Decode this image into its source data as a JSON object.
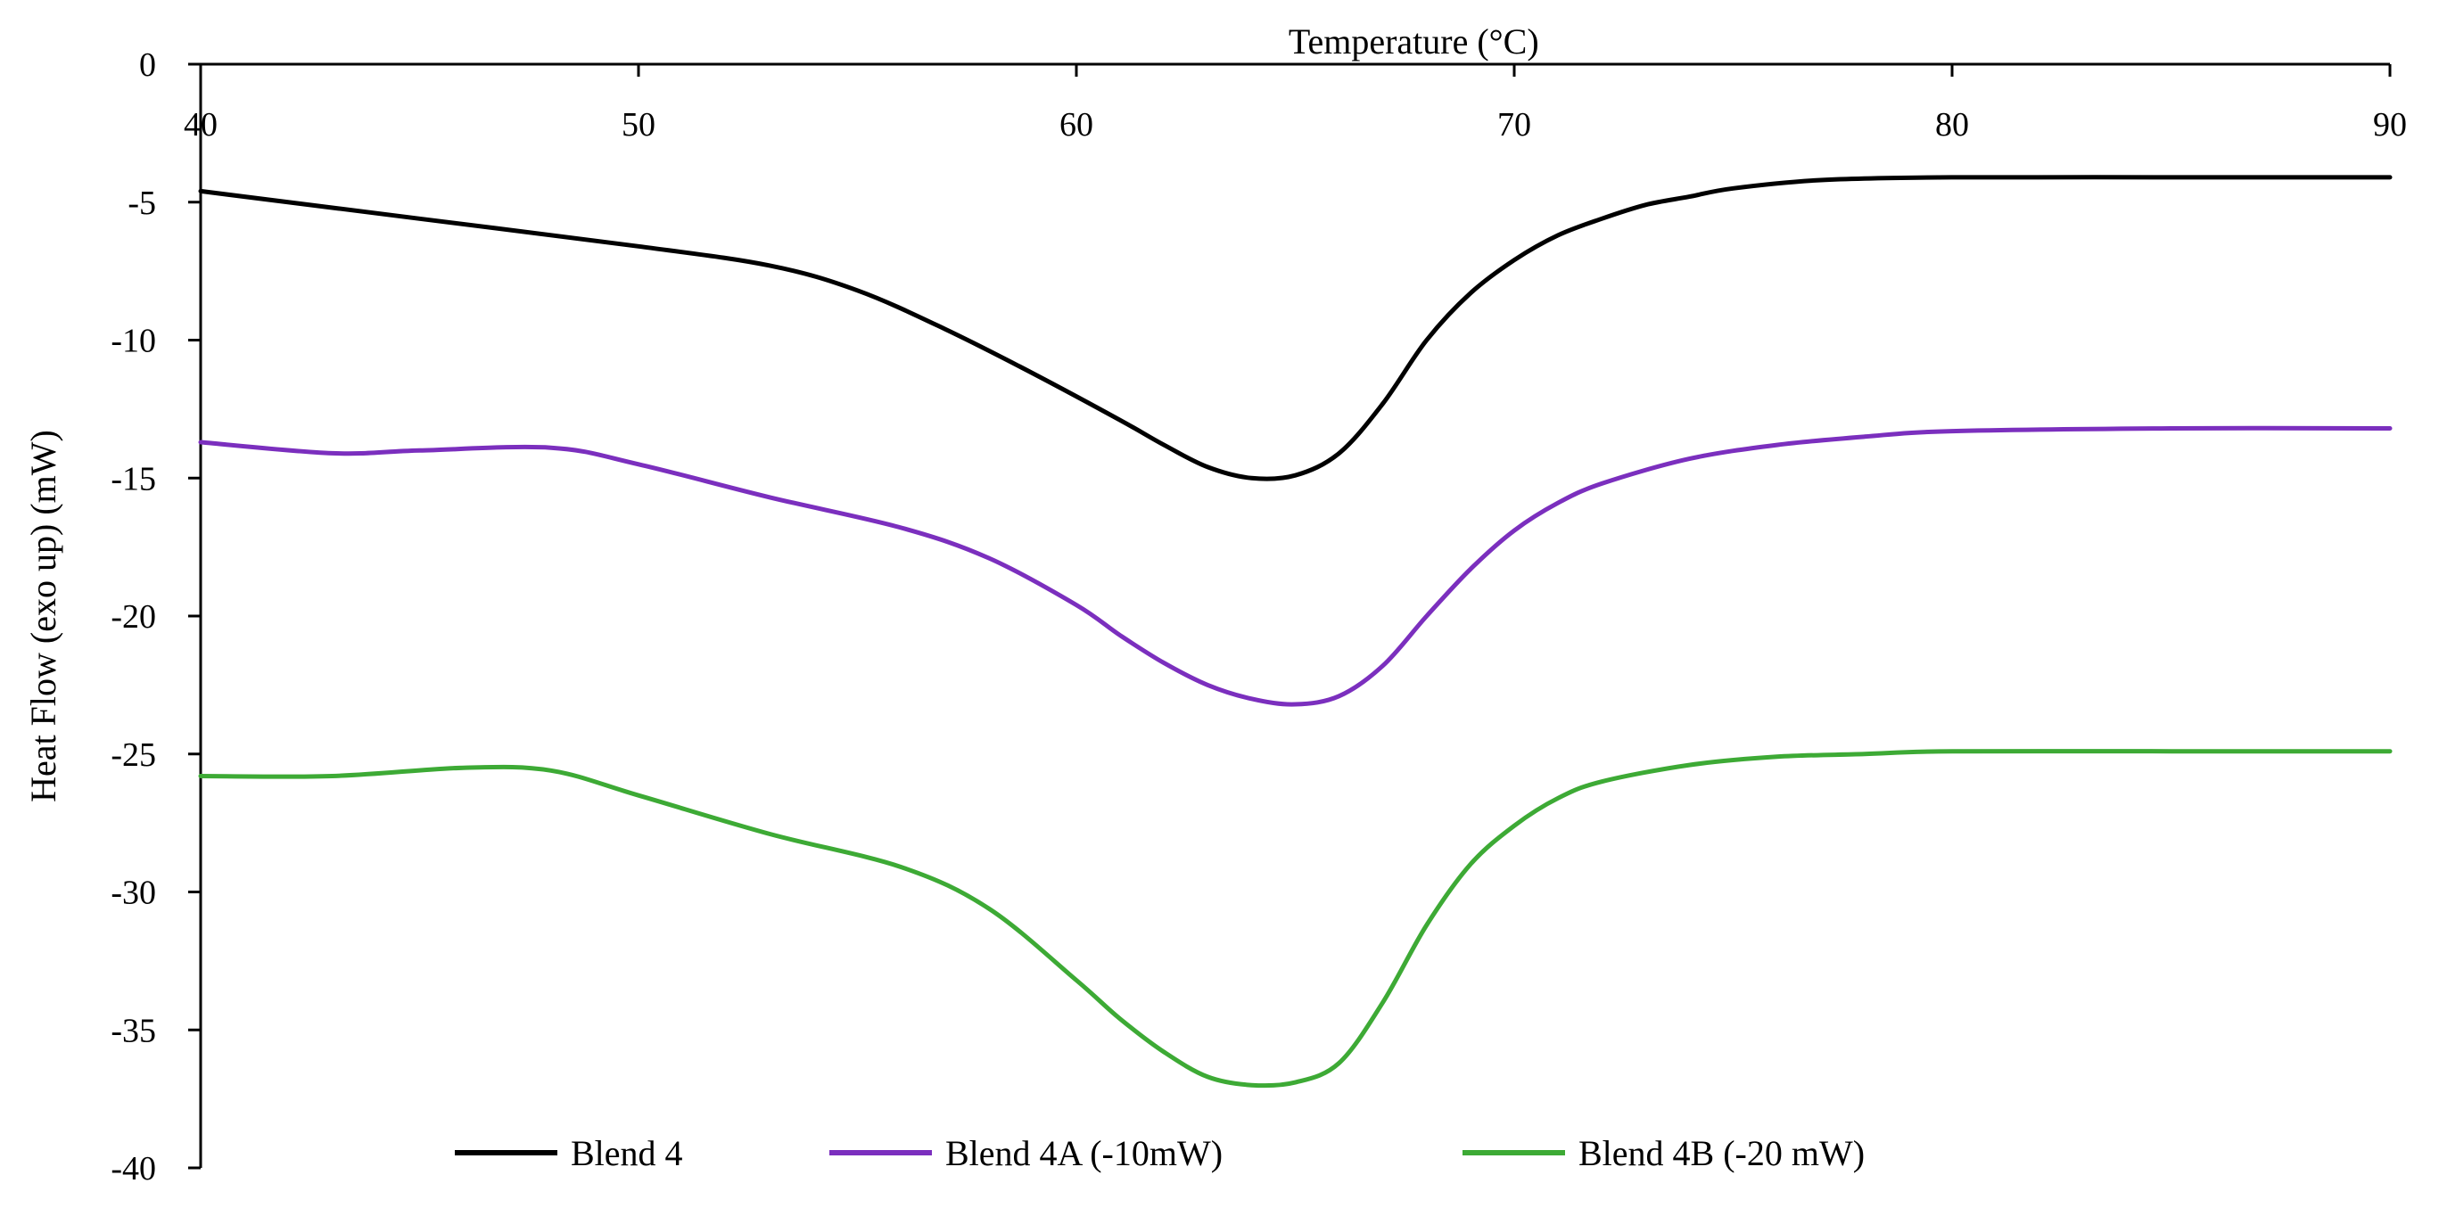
{
  "chart_data": {
    "type": "line",
    "title": "",
    "xlabel": "Temperature (°C)",
    "ylabel": "Heat Flow (exo up) (mW)",
    "xlim": [
      40,
      90
    ],
    "ylim": [
      -40,
      0
    ],
    "x_ticks": [
      40,
      50,
      60,
      70,
      80,
      90
    ],
    "y_ticks": [
      0,
      -5,
      -10,
      -15,
      -20,
      -25,
      -30,
      -35,
      -40
    ],
    "x_axis_position": "top",
    "grid": false,
    "legend_position": "bottom",
    "series": [
      {
        "name": "Blend 4",
        "color": "#000000",
        "x": [
          40,
          45,
          50,
          53,
          55,
          57,
          59,
          61,
          62,
          63,
          64,
          65,
          66,
          67,
          68,
          69,
          70,
          71,
          72,
          73,
          74,
          75,
          77,
          80,
          85,
          90
        ],
        "y": [
          -4.6,
          -5.6,
          -6.6,
          -7.3,
          -8.2,
          -9.6,
          -11.2,
          -12.9,
          -13.8,
          -14.6,
          -15.0,
          -14.9,
          -14.1,
          -12.3,
          -10.0,
          -8.3,
          -7.1,
          -6.2,
          -5.6,
          -5.1,
          -4.8,
          -4.5,
          -4.2,
          -4.1,
          -4.1,
          -4.1
        ]
      },
      {
        "name": "Blend 4A (-10mW)",
        "color": "#7B2FBE",
        "x": [
          40,
          43,
          45,
          48,
          50,
          53,
          56,
          58,
          60,
          61,
          62,
          63,
          64,
          65,
          66,
          67,
          68,
          69,
          70,
          71,
          72,
          74,
          76,
          78,
          80,
          85,
          90
        ],
        "y": [
          -13.7,
          -14.1,
          -14.0,
          -13.9,
          -14.5,
          -15.7,
          -16.8,
          -17.9,
          -19.6,
          -20.7,
          -21.7,
          -22.5,
          -23.0,
          -23.2,
          -22.9,
          -21.8,
          -20.0,
          -18.3,
          -16.9,
          -15.9,
          -15.2,
          -14.3,
          -13.8,
          -13.5,
          -13.3,
          -13.2,
          -13.2
        ]
      },
      {
        "name": "Blend 4B (-20 mW)",
        "color": "#3DAA35",
        "x": [
          40,
          43,
          46,
          48,
          50,
          53,
          56,
          58,
          60,
          61,
          62,
          63,
          64,
          65,
          66,
          67,
          68,
          69,
          70,
          71,
          72,
          74,
          76,
          78,
          80,
          85,
          90
        ],
        "y": [
          -25.8,
          -25.8,
          -25.5,
          -25.6,
          -26.5,
          -27.9,
          -29.1,
          -30.6,
          -33.2,
          -34.6,
          -35.8,
          -36.7,
          -37.0,
          -36.9,
          -36.2,
          -34.0,
          -31.2,
          -29.0,
          -27.6,
          -26.6,
          -26.0,
          -25.4,
          -25.1,
          -25.0,
          -24.9,
          -24.9,
          -24.9
        ]
      }
    ]
  }
}
